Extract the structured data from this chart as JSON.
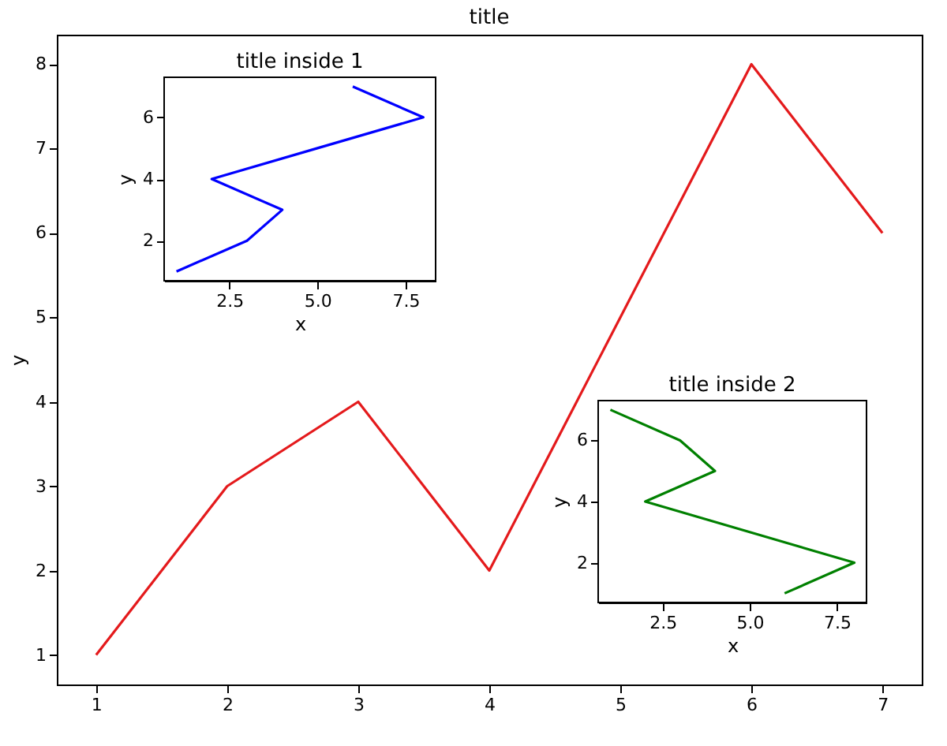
{
  "chart_data": [
    {
      "type": "line",
      "title": "title",
      "ylabel": "y",
      "x": [
        1,
        2,
        3,
        4,
        5,
        6,
        7
      ],
      "series": [
        {
          "color": "#e41a1c",
          "values": [
            1,
            3,
            4,
            2,
            5,
            8,
            6
          ]
        }
      ],
      "xlim": [
        0.7,
        7.3
      ],
      "ylim": [
        0.65,
        8.35
      ],
      "xticks": [
        1,
        2,
        3,
        4,
        5,
        6,
        7
      ],
      "yticks": [
        1,
        2,
        3,
        4,
        5,
        6,
        7,
        8
      ],
      "grid": false
    },
    {
      "type": "line",
      "title": "title inside 1",
      "xlabel": "x",
      "ylabel": "y",
      "x": [
        1,
        3,
        4,
        2,
        5,
        8,
        6
      ],
      "series": [
        {
          "color": "#0000ff",
          "values": [
            1,
            2,
            3,
            4,
            5,
            6,
            7
          ]
        }
      ],
      "xlim": [
        0.65,
        8.35
      ],
      "ylim": [
        0.7,
        7.3
      ],
      "xticks": [
        {
          "value": 2.5,
          "label": "2.5"
        },
        {
          "value": 5,
          "label": "5.0"
        },
        {
          "value": 7.5,
          "label": "7.5"
        }
      ],
      "yticks": [
        2,
        4,
        6
      ],
      "grid": false
    },
    {
      "type": "line",
      "title": "title inside 2",
      "xlabel": "x",
      "ylabel": "y",
      "x": [
        6,
        8,
        5,
        2,
        4,
        3,
        1
      ],
      "series": [
        {
          "color": "#008000",
          "values": [
            1,
            2,
            3,
            4,
            5,
            6,
            7
          ]
        }
      ],
      "xlim": [
        0.65,
        8.35
      ],
      "ylim": [
        0.7,
        7.3
      ],
      "xticks": [
        {
          "value": 2.5,
          "label": "2.5"
        },
        {
          "value": 5,
          "label": "5.0"
        },
        {
          "value": 7.5,
          "label": "7.5"
        }
      ],
      "yticks": [
        2,
        4,
        6
      ],
      "grid": false
    }
  ]
}
